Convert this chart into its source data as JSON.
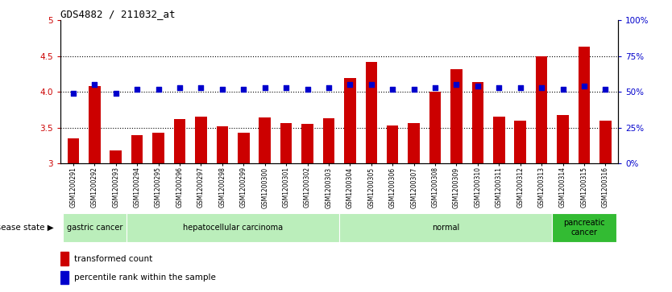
{
  "title": "GDS4882 / 211032_at",
  "samples": [
    "GSM1200291",
    "GSM1200292",
    "GSM1200293",
    "GSM1200294",
    "GSM1200295",
    "GSM1200296",
    "GSM1200297",
    "GSM1200298",
    "GSM1200299",
    "GSM1200300",
    "GSM1200301",
    "GSM1200302",
    "GSM1200303",
    "GSM1200304",
    "GSM1200305",
    "GSM1200306",
    "GSM1200307",
    "GSM1200308",
    "GSM1200309",
    "GSM1200310",
    "GSM1200311",
    "GSM1200312",
    "GSM1200313",
    "GSM1200314",
    "GSM1200315",
    "GSM1200316"
  ],
  "transformed_count": [
    3.35,
    4.08,
    3.18,
    3.4,
    3.43,
    3.62,
    3.66,
    3.52,
    3.43,
    3.64,
    3.57,
    3.55,
    3.63,
    4.19,
    4.42,
    3.53,
    3.57,
    4.0,
    4.32,
    4.14,
    3.65,
    3.6,
    4.5,
    3.68,
    4.63,
    3.6
  ],
  "percentile_rank": [
    49,
    55,
    49,
    52,
    52,
    53,
    53,
    52,
    52,
    53,
    53,
    52,
    53,
    55,
    55,
    52,
    52,
    53,
    55,
    54,
    53,
    53,
    53,
    52,
    54,
    52
  ],
  "ylim_left": [
    3.0,
    5.0
  ],
  "ylim_right": [
    0,
    100
  ],
  "yticks_left": [
    3.0,
    3.5,
    4.0,
    4.5,
    5.0
  ],
  "yticks_right": [
    0,
    25,
    50,
    75,
    100
  ],
  "ytick_labels_right": [
    "0%",
    "25%",
    "50%",
    "75%",
    "100%"
  ],
  "bar_color": "#cc0000",
  "percentile_color": "#0000cc",
  "disease_groups": [
    {
      "label": "gastric cancer",
      "start": 0,
      "end": 3,
      "color": "#bbeebb"
    },
    {
      "label": "hepatocellular carcinoma",
      "start": 3,
      "end": 13,
      "color": "#bbeebb"
    },
    {
      "label": "normal",
      "start": 13,
      "end": 23,
      "color": "#bbeebb"
    },
    {
      "label": "pancreatic\ncancer",
      "start": 23,
      "end": 26,
      "color": "#33bb33"
    }
  ],
  "disease_state_label": "disease state",
  "legend_bar_label": "transformed count",
  "legend_pct_label": "percentile rank within the sample",
  "tick_label_color_left": "#cc0000",
  "tick_label_color_right": "#0000cc",
  "bar_bottom": 3.0,
  "gridline_vals": [
    3.5,
    4.0,
    4.5
  ]
}
